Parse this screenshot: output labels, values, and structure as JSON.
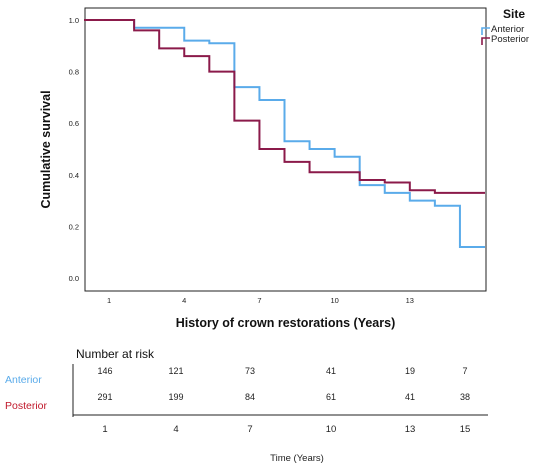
{
  "chart_data": {
    "type": "line",
    "subtype": "kaplan-meier step",
    "ylabel": "Cumulative survival",
    "xlabel": "History of crown restorations (Years)",
    "xlim": [
      0,
      16
    ],
    "ylim": [
      0,
      1.0
    ],
    "x_ticks": [
      1,
      4,
      7,
      10,
      13
    ],
    "y_ticks": [
      "0.0",
      "0.2",
      "0.4",
      "0.6",
      "0.8",
      "1.0"
    ],
    "legend": {
      "title": "Site",
      "placement": "top-right"
    },
    "series": [
      {
        "name": "Anterior",
        "color": "#5aabea",
        "x": [
          0,
          2,
          4,
          5,
          6,
          7,
          8,
          9,
          10,
          11,
          12,
          13,
          14,
          15,
          16
        ],
        "y": [
          1.0,
          0.97,
          0.92,
          0.91,
          0.74,
          0.69,
          0.53,
          0.5,
          0.47,
          0.36,
          0.33,
          0.3,
          0.28,
          0.12,
          0.12
        ]
      },
      {
        "name": "Posterior",
        "color": "#8b1a4a",
        "x": [
          0,
          2,
          3,
          4,
          5,
          6,
          7,
          8,
          9,
          10,
          11,
          12,
          13,
          14,
          16
        ],
        "y": [
          1.0,
          0.96,
          0.89,
          0.86,
          0.8,
          0.61,
          0.5,
          0.45,
          0.41,
          0.41,
          0.38,
          0.37,
          0.34,
          0.33,
          0.33
        ]
      }
    ],
    "risk_table": {
      "title": "Number at risk",
      "time_points": [
        1,
        4,
        7,
        10,
        13,
        15
      ],
      "xlabel": "Time (Years)",
      "groups": [
        {
          "name": "Anterior",
          "color": "#5aabea",
          "values": [
            146,
            121,
            73,
            41,
            19,
            7
          ]
        },
        {
          "name": "Posterior",
          "color": "#c0182b",
          "values": [
            291,
            199,
            84,
            61,
            41,
            38
          ]
        }
      ]
    }
  }
}
